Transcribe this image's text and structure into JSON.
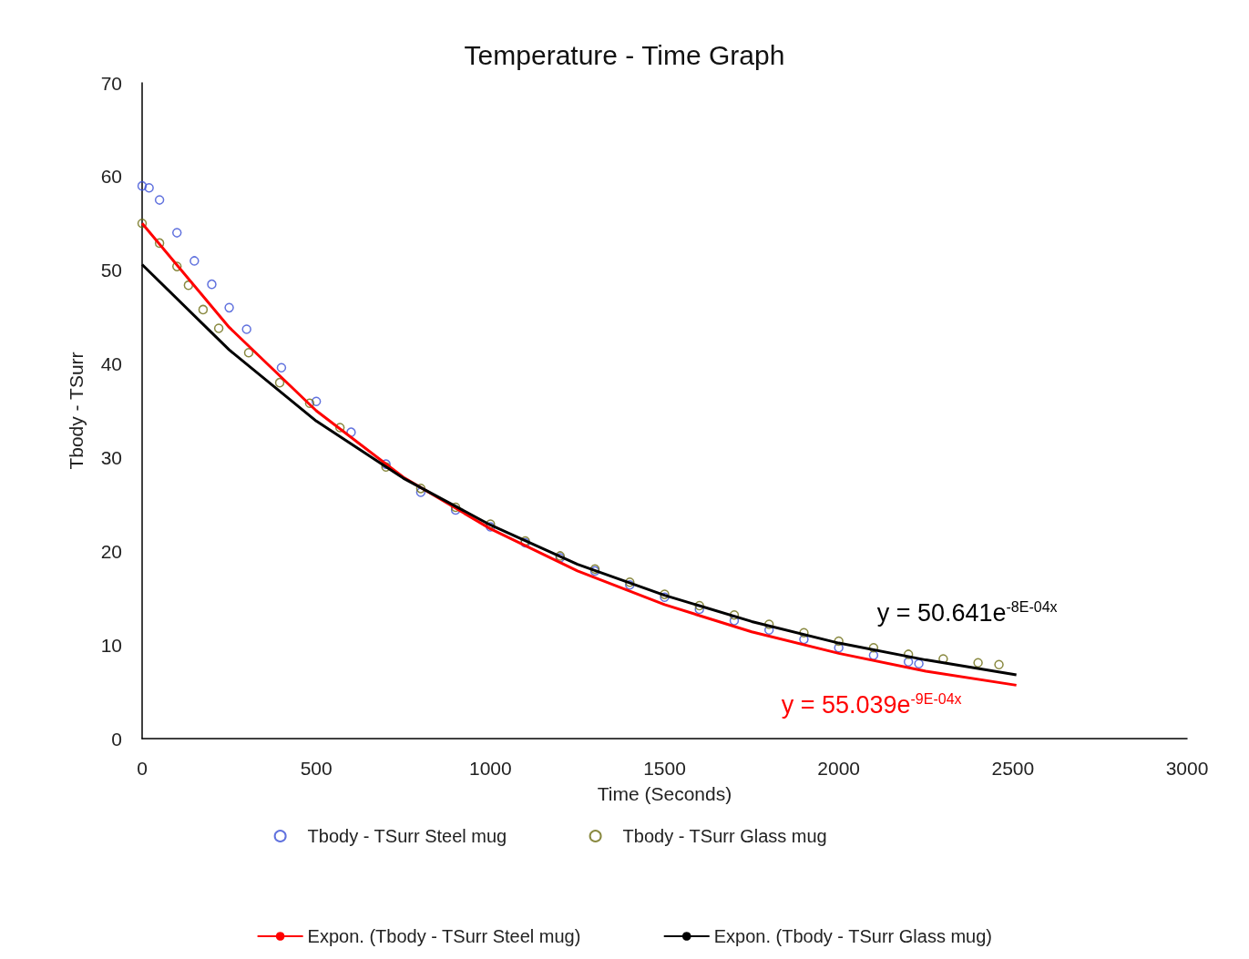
{
  "chart_data": {
    "type": "scatter",
    "title": "Temperature - Time Graph",
    "xlabel": "Time (Seconds)",
    "ylabel": "Tbody - TSurr",
    "xlim": [
      0,
      3000
    ],
    "xticks": [
      0,
      500,
      1000,
      1500,
      2000,
      2500,
      3000
    ],
    "ylim": [
      0,
      70
    ],
    "yticks": [
      0,
      10,
      20,
      30,
      40,
      50,
      60,
      70
    ],
    "grid": false,
    "legend": "bottom",
    "marker": "circle",
    "series": [
      {
        "name": "Tbody - TSurr Steel mug",
        "color": "#3a4fd6",
        "x": [
          0,
          20,
          50,
          100,
          150,
          200,
          250,
          300,
          400,
          500,
          600,
          700,
          800,
          900,
          1000,
          1100,
          1200,
          1300,
          1400,
          1500,
          1600,
          1700,
          1800,
          1900,
          2000,
          2100,
          2200,
          2230
        ],
        "values": [
          59,
          58.8,
          57.5,
          54,
          51,
          48.5,
          46,
          43.7,
          39.6,
          36,
          32.7,
          29.3,
          26.3,
          24.4,
          22.6,
          20.9,
          19.3,
          17.9,
          16.4,
          15.1,
          13.8,
          12.6,
          11.6,
          10.6,
          9.7,
          8.9,
          8.2,
          8
        ]
      },
      {
        "name": "Tbody - TSurr Glass mug",
        "color": "#6b6b10",
        "x": [
          0,
          50,
          100,
          133,
          175,
          220,
          306,
          395,
          481,
          568,
          700,
          800,
          900,
          1000,
          1100,
          1200,
          1300,
          1400,
          1500,
          1600,
          1700,
          1800,
          1900,
          2000,
          2100,
          2200,
          2300,
          2400,
          2460
        ],
        "values": [
          55,
          52.9,
          50.4,
          48.4,
          45.8,
          43.8,
          41.2,
          38,
          35.8,
          33.2,
          29,
          26.7,
          24.7,
          22.9,
          21.1,
          19.5,
          18.1,
          16.7,
          15.4,
          14.2,
          13.2,
          12.2,
          11.3,
          10.4,
          9.7,
          9,
          8.5,
          8.1,
          7.9
        ]
      },
      {
        "name": "Expon. (Tbody - TSurr Steel mug)",
        "type": "line",
        "marker": "none",
        "color": "#ff0000",
        "x": [
          0,
          250,
          500,
          750,
          1000,
          1250,
          1500,
          1750,
          2000,
          2250,
          2510
        ],
        "values": [
          55,
          43.9,
          35,
          27.9,
          22.4,
          17.9,
          14.3,
          11.4,
          9.1,
          7.2,
          5.7
        ]
      },
      {
        "name": "Expon. (Tbody - TSurr Glass mug)",
        "type": "line",
        "marker": "none",
        "color": "#000000",
        "x": [
          0,
          250,
          500,
          750,
          1000,
          1250,
          1500,
          1750,
          2000,
          2250,
          2510
        ],
        "values": [
          50.6,
          41.5,
          33.9,
          27.8,
          22.8,
          18.6,
          15.3,
          12.5,
          10.2,
          8.4,
          6.8
        ]
      }
    ],
    "annotations": [
      "y = 55.039e$^{-9E-04x}$",
      "y = 50.641e$^{-8E-04x}$"
    ]
  }
}
